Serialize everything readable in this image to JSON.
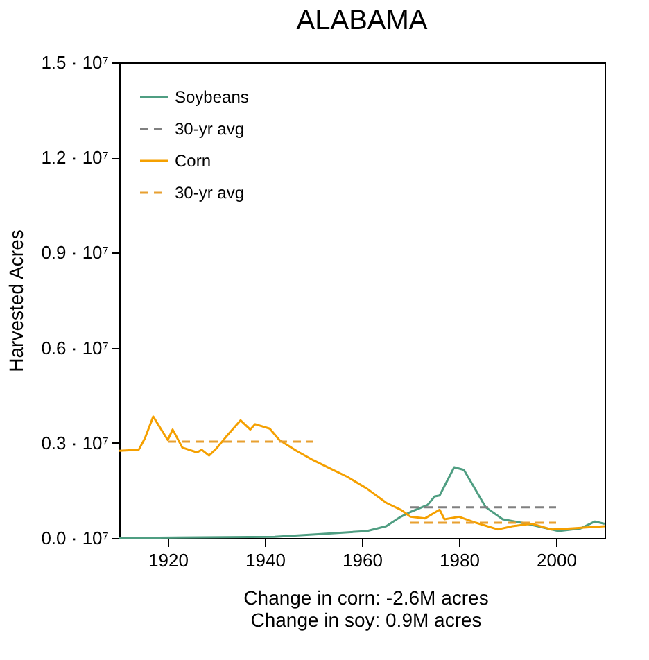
{
  "chart_data": {
    "type": "line",
    "title": "ALABAMA",
    "ylabel": "Harvested Acres",
    "annotations": [
      "Change in corn: -2.6M acres",
      "Change in soy: 0.9M acres"
    ],
    "xlim": [
      1910,
      2010
    ],
    "xticks": [
      1920,
      1940,
      1960,
      1980,
      2000
    ],
    "ylim": [
      0,
      15000000
    ],
    "yticks": [
      {
        "value": 0,
        "label": "0.0 · 10⁷"
      },
      {
        "value": 3000000,
        "label": "0.3 · 10⁷"
      },
      {
        "value": 6000000,
        "label": "0.6 · 10⁷"
      },
      {
        "value": 9000000,
        "label": "0.9 · 10⁷"
      },
      {
        "value": 12000000,
        "label": "1.2 · 10⁷"
      },
      {
        "value": 15000000,
        "label": "1.5 · 10⁷"
      }
    ],
    "grid": false,
    "legend": "top left",
    "marker": "none",
    "series": [
      {
        "name": "Soybeans",
        "color": "#4f9e82",
        "line_style": "solid",
        "x": [
          1910,
          1942,
          1951,
          1961,
          1965,
          1968,
          1970,
          1973.5,
          1975,
          1976,
          1979,
          1981,
          1983,
          1985.5,
          1989,
          1994,
          1999,
          2000.5,
          2005,
          2008,
          2010
        ],
        "values": [
          0,
          40000,
          120000,
          220000,
          370000,
          670000,
          820000,
          1040000,
          1310000,
          1340000,
          2230000,
          2150000,
          1630000,
          970000,
          590000,
          450000,
          270000,
          220000,
          300000,
          520000,
          450000
        ]
      },
      {
        "name": "30-yr avg",
        "color": "#808080",
        "line_style": "dashed",
        "x": [
          1970,
          2000
        ],
        "values": [
          970000,
          970000
        ]
      },
      {
        "name": "Corn",
        "color": "#f5a000",
        "line_style": "solid",
        "x": [
          1910,
          1914,
          1915.3,
          1917,
          1920,
          1921,
          1923,
          1926,
          1927,
          1928.5,
          1930,
          1932,
          1935,
          1937,
          1938,
          1941,
          1943,
          1946.5,
          1950,
          1954,
          1957,
          1961,
          1965,
          1968,
          1970,
          1973,
          1976,
          1977,
          1980,
          1983.5,
          1988,
          1991,
          1995,
          1999,
          2003,
          2010
        ],
        "values": [
          2750000,
          2780000,
          3150000,
          3830000,
          3090000,
          3420000,
          2850000,
          2700000,
          2780000,
          2600000,
          2820000,
          3190000,
          3710000,
          3420000,
          3590000,
          3450000,
          3090000,
          2750000,
          2450000,
          2150000,
          1930000,
          1560000,
          1110000,
          890000,
          670000,
          620000,
          890000,
          590000,
          670000,
          480000,
          270000,
          370000,
          450000,
          270000,
          300000,
          370000
        ]
      },
      {
        "name": "30-yr avg",
        "color": "#e8a030",
        "line_style": "dashed",
        "x": [
          1920,
          1950
        ],
        "values": [
          3040000,
          3040000
        ]
      },
      {
        "type": "line",
        "color": "#e8a030",
        "line_style": "dashed",
        "x": [
          1970,
          2000
        ],
        "values": [
          480000,
          480000
        ]
      }
    ]
  }
}
